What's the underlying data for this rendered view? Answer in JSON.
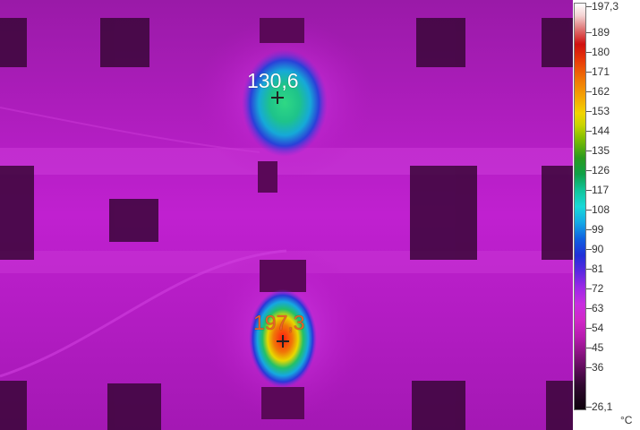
{
  "spots": [
    {
      "name": "spot-upper",
      "value": "130,6",
      "color": "#ffffff"
    },
    {
      "name": "spot-lower",
      "value": "197,3",
      "color": "#e8602a"
    }
  ],
  "scale": {
    "max": "197,3",
    "min": "26,1",
    "ticks": [
      "189",
      "180",
      "171",
      "162",
      "153",
      "144",
      "135",
      "126",
      "117",
      "108",
      "99",
      "90",
      "81",
      "72",
      "63",
      "54",
      "45",
      "36"
    ],
    "unit": "°C"
  },
  "colors": {
    "background": "#b718c4",
    "hot": "#ff2a10",
    "warm": "#22c870"
  }
}
